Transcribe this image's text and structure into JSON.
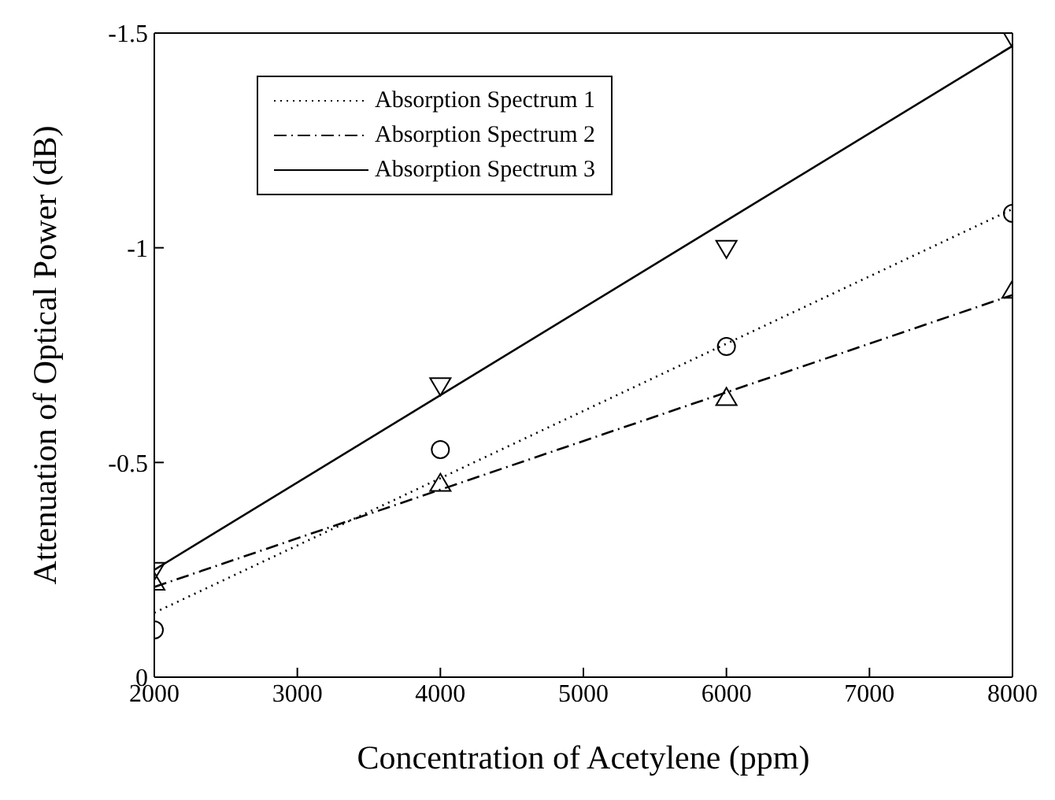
{
  "chart_data": {
    "type": "line",
    "xlabel": "Concentration of Acetylene (ppm)",
    "ylabel": "Attenuation of Optical Power (dB)",
    "xlim": [
      2000,
      8000
    ],
    "xticks": [
      2000,
      3000,
      4000,
      5000,
      6000,
      7000,
      8000
    ],
    "ylim": [
      0,
      -1.5
    ],
    "yticks": [
      0,
      -0.5,
      -1,
      -1.5
    ],
    "legend": "top left",
    "series": [
      {
        "name": "Absorption Spectrum 1",
        "line_style": "dotted",
        "marker": "none",
        "color": "#000000",
        "x": [
          2000,
          8000
        ],
        "values": [
          -0.15,
          -1.09
        ]
      },
      {
        "name": "Absorption Spectrum 2",
        "line_style": "dashdot",
        "marker": "none",
        "color": "#000000",
        "x": [
          2000,
          8000
        ],
        "values": [
          -0.21,
          -0.89
        ]
      },
      {
        "name": "Absorption Spectrum 3",
        "line_style": "solid",
        "marker": "none",
        "color": "#000000",
        "x": [
          2000,
          8000
        ],
        "values": [
          -0.25,
          -1.47
        ]
      },
      {
        "type": "scatter",
        "marker": "circle",
        "color": "#000000",
        "x": [
          2000,
          4000,
          6000,
          8000
        ],
        "values": [
          -0.11,
          -0.53,
          -0.77,
          -1.08
        ]
      },
      {
        "type": "scatter",
        "marker": "triangle",
        "color": "#000000",
        "x": [
          2000,
          4000,
          6000,
          8000
        ],
        "values": [
          -0.22,
          -0.45,
          -0.65,
          -0.9
        ]
      },
      {
        "type": "scatter",
        "marker": "triangle-down",
        "color": "#000000",
        "x": [
          2000,
          4000,
          6000,
          8000
        ],
        "values": [
          -0.25,
          -0.68,
          -1.0,
          -1.49
        ]
      }
    ]
  }
}
